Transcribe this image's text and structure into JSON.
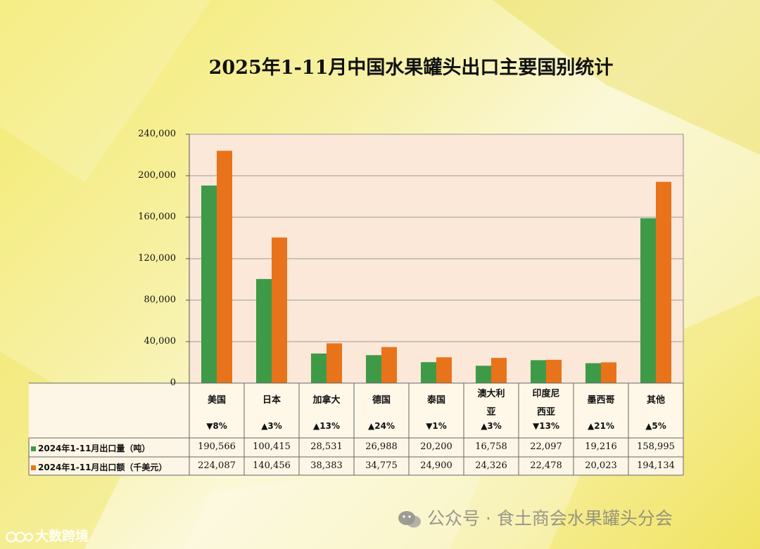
{
  "chart_data": {
    "type": "bar",
    "title": "2025年1-11月中国水果罐头出口主要国别统计",
    "categories": [
      "美国",
      "日本",
      "加拿大",
      "德国",
      "泰国",
      "澳大利亚",
      "印度尼西亚",
      "墨西哥",
      "其他"
    ],
    "category_lines": [
      [
        "美国"
      ],
      [
        "日本"
      ],
      [
        "加拿大"
      ],
      [
        "德国"
      ],
      [
        "泰国"
      ],
      [
        "澳大利",
        "亚"
      ],
      [
        "印度尼",
        "西亚"
      ],
      [
        "墨西哥"
      ],
      [
        "其他"
      ]
    ],
    "changes": [
      "▼8%",
      "▲3%",
      "▲13%",
      "▲24%",
      "▼1%",
      "▲3%",
      "▼13%",
      "▲21%",
      "▲5%"
    ],
    "series": [
      {
        "name": "2024年1-11月出口量（吨）",
        "color": "#3f9a48",
        "values": [
          190566,
          100415,
          28531,
          26988,
          20200,
          16758,
          22097,
          19216,
          158995
        ],
        "labels": [
          "190,566",
          "100,415",
          "28,531",
          "26,988",
          "20,200",
          "16,758",
          "22,097",
          "19,216",
          "158,995"
        ]
      },
      {
        "name": "2024年1-11月出口额（千美元）",
        "color": "#e8731a",
        "values": [
          224087,
          140456,
          38383,
          34775,
          24900,
          24326,
          22478,
          20023,
          194134
        ],
        "labels": [
          "224,087",
          "140,456",
          "38,383",
          "34,775",
          "24,900",
          "24,326",
          "22,478",
          "20,023",
          "194,134"
        ]
      }
    ],
    "yticks": [
      "0",
      "40,000",
      "80,000",
      "120,000",
      "160,000",
      "200,000",
      "240,000"
    ],
    "ytick_values": [
      0,
      40000,
      80000,
      120000,
      160000,
      200000,
      240000
    ],
    "ylim": [
      0,
      240000
    ],
    "grid": true,
    "xlabel": "",
    "ylabel": ""
  },
  "watermark": {
    "right": "公众号 · 食土商会水果罐头分会",
    "left": "大数跨境"
  },
  "colors": {
    "plot_bg": "#fbe8d8",
    "grid": "#9a9a9a",
    "table_bg": "#fdf6e6"
  }
}
